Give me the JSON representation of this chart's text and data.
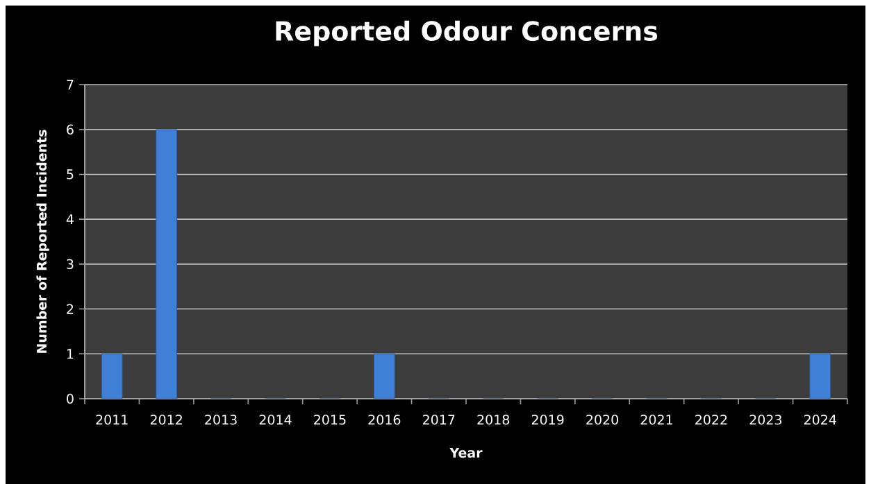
{
  "chart_data": {
    "type": "bar",
    "title": "Reported Odour Concerns",
    "xlabel": "Year",
    "ylabel": "Number of Reported Incidents",
    "categories": [
      "2011",
      "2012",
      "2013",
      "2014",
      "2015",
      "2016",
      "2017",
      "2018",
      "2019",
      "2020",
      "2021",
      "2022",
      "2023",
      "2024"
    ],
    "values": [
      1,
      6,
      0,
      0,
      0,
      1,
      0,
      0,
      0,
      0,
      0,
      0,
      0,
      1
    ],
    "color": "#3f7fd6",
    "ylim": [
      0,
      7
    ],
    "yticks": [
      0,
      1,
      2,
      3,
      4,
      5,
      6,
      7
    ],
    "grid": "y"
  }
}
